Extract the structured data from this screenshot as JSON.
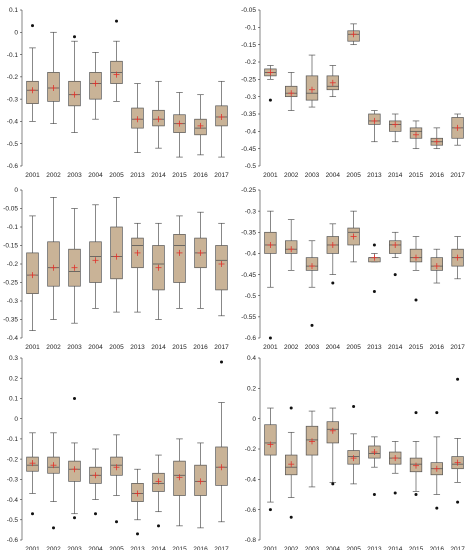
{
  "chart_data": [
    {
      "type": "box",
      "categories": [
        "2001",
        "2002",
        "2003",
        "2004",
        "2005",
        "2013",
        "2014",
        "2015",
        "2016",
        "2017"
      ],
      "ylim": [
        -0.6,
        0.1
      ],
      "yticks": [
        -0.6,
        -0.5,
        -0.4,
        -0.3,
        -0.2,
        -0.1,
        0,
        0.1
      ],
      "yticklabels": [
        "-0.6",
        "-0.5",
        "-0.4",
        "-0.3",
        "-0.2",
        "-0.1",
        "0",
        "0.1"
      ],
      "boxes": [
        {
          "whislo": -0.4,
          "q1": -0.32,
          "med": -0.26,
          "q3": -0.22,
          "whishi": -0.07,
          "mean": -0.26,
          "fliers": [
            0.03
          ]
        },
        {
          "whislo": -0.41,
          "q1": -0.31,
          "med": -0.25,
          "q3": -0.18,
          "whishi": 0.0,
          "mean": -0.25,
          "fliers": []
        },
        {
          "whislo": -0.45,
          "q1": -0.33,
          "med": -0.28,
          "q3": -0.22,
          "whishi": -0.04,
          "mean": -0.28,
          "fliers": [
            -0.02
          ]
        },
        {
          "whislo": -0.39,
          "q1": -0.3,
          "med": -0.23,
          "q3": -0.18,
          "whishi": -0.09,
          "mean": -0.23,
          "fliers": []
        },
        {
          "whislo": -0.31,
          "q1": -0.23,
          "med": -0.18,
          "q3": -0.13,
          "whishi": -0.04,
          "mean": -0.19,
          "fliers": [
            0.05
          ]
        },
        {
          "whislo": -0.54,
          "q1": -0.43,
          "med": -0.39,
          "q3": -0.34,
          "whishi": -0.23,
          "mean": -0.39,
          "fliers": []
        },
        {
          "whislo": -0.52,
          "q1": -0.42,
          "med": -0.39,
          "q3": -0.35,
          "whishi": -0.22,
          "mean": -0.39,
          "fliers": []
        },
        {
          "whislo": -0.56,
          "q1": -0.45,
          "med": -0.41,
          "q3": -0.37,
          "whishi": -0.27,
          "mean": -0.41,
          "fliers": []
        },
        {
          "whislo": -0.55,
          "q1": -0.46,
          "med": -0.43,
          "q3": -0.39,
          "whishi": -0.28,
          "mean": -0.42,
          "fliers": []
        },
        {
          "whislo": -0.56,
          "q1": -0.42,
          "med": -0.38,
          "q3": -0.33,
          "whishi": -0.22,
          "mean": -0.38,
          "fliers": []
        }
      ]
    },
    {
      "type": "box",
      "categories": [
        "2001",
        "2002",
        "2003",
        "2004",
        "2005",
        "2013",
        "2014",
        "2015",
        "2016",
        "2017"
      ],
      "ylim": [
        -0.5,
        -0.05
      ],
      "yticks": [
        -0.5,
        -0.45,
        -0.4,
        -0.35,
        -0.3,
        -0.25,
        -0.2,
        -0.15,
        -0.1,
        -0.05
      ],
      "yticklabels": [
        "-0.5",
        "-0.45",
        "-0.4",
        "-0.35",
        "-0.3",
        "-0.25",
        "-0.2",
        "-0.15",
        "-0.1",
        "-0.05"
      ],
      "boxes": [
        {
          "whislo": -0.25,
          "q1": -0.24,
          "med": -0.23,
          "q3": -0.22,
          "whishi": -0.21,
          "mean": -0.23,
          "fliers": [
            -0.31
          ]
        },
        {
          "whislo": -0.34,
          "q1": -0.3,
          "med": -0.29,
          "q3": -0.27,
          "whishi": -0.23,
          "mean": -0.29,
          "fliers": []
        },
        {
          "whislo": -0.33,
          "q1": -0.31,
          "med": -0.29,
          "q3": -0.24,
          "whishi": -0.18,
          "mean": -0.28,
          "fliers": []
        },
        {
          "whislo": -0.3,
          "q1": -0.28,
          "med": -0.27,
          "q3": -0.24,
          "whishi": -0.21,
          "mean": -0.26,
          "fliers": []
        },
        {
          "whislo": -0.15,
          "q1": -0.14,
          "med": -0.12,
          "q3": -0.11,
          "whishi": -0.09,
          "mean": -0.12,
          "fliers": []
        },
        {
          "whislo": -0.43,
          "q1": -0.38,
          "med": -0.37,
          "q3": -0.35,
          "whishi": -0.34,
          "mean": -0.37,
          "fliers": []
        },
        {
          "whislo": -0.43,
          "q1": -0.4,
          "med": -0.38,
          "q3": -0.37,
          "whishi": -0.35,
          "mean": -0.38,
          "fliers": []
        },
        {
          "whislo": -0.45,
          "q1": -0.42,
          "med": -0.4,
          "q3": -0.39,
          "whishi": -0.37,
          "mean": -0.41,
          "fliers": []
        },
        {
          "whislo": -0.45,
          "q1": -0.44,
          "med": -0.43,
          "q3": -0.42,
          "whishi": -0.39,
          "mean": -0.43,
          "fliers": []
        },
        {
          "whislo": -0.44,
          "q1": -0.42,
          "med": -0.39,
          "q3": -0.36,
          "whishi": -0.35,
          "mean": -0.39,
          "fliers": []
        }
      ]
    },
    {
      "type": "box",
      "categories": [
        "2001",
        "2002",
        "2003",
        "2004",
        "2005",
        "2013",
        "2014",
        "2015",
        "2016",
        "2017"
      ],
      "ylim": [
        -0.4,
        0
      ],
      "yticks": [
        -0.4,
        -0.35,
        -0.3,
        -0.25,
        -0.2,
        -0.15,
        -0.1,
        -0.05,
        0
      ],
      "yticklabels": [
        "-0.4",
        "-0.35",
        "-0.3",
        "-0.25",
        "-0.2",
        "-0.15",
        "-0.1",
        "-0.05",
        "0"
      ],
      "boxes": [
        {
          "whislo": -0.38,
          "q1": -0.28,
          "med": -0.23,
          "q3": -0.17,
          "whishi": -0.07,
          "mean": -0.23,
          "fliers": []
        },
        {
          "whislo": -0.35,
          "q1": -0.26,
          "med": -0.21,
          "q3": -0.14,
          "whishi": -0.02,
          "mean": -0.21,
          "fliers": []
        },
        {
          "whislo": -0.36,
          "q1": -0.26,
          "med": -0.22,
          "q3": -0.16,
          "whishi": -0.05,
          "mean": -0.21,
          "fliers": []
        },
        {
          "whislo": -0.32,
          "q1": -0.25,
          "med": -0.18,
          "q3": -0.14,
          "whishi": -0.04,
          "mean": -0.19,
          "fliers": []
        },
        {
          "whislo": -0.33,
          "q1": -0.24,
          "med": -0.18,
          "q3": -0.1,
          "whishi": -0.02,
          "mean": -0.18,
          "fliers": []
        },
        {
          "whislo": -0.33,
          "q1": -0.21,
          "med": -0.15,
          "q3": -0.13,
          "whishi": -0.09,
          "mean": -0.17,
          "fliers": []
        },
        {
          "whislo": -0.35,
          "q1": -0.27,
          "med": -0.2,
          "q3": -0.15,
          "whishi": -0.09,
          "mean": -0.21,
          "fliers": []
        },
        {
          "whislo": -0.32,
          "q1": -0.25,
          "med": -0.15,
          "q3": -0.12,
          "whishi": -0.07,
          "mean": -0.17,
          "fliers": []
        },
        {
          "whislo": -0.32,
          "q1": -0.21,
          "med": -0.17,
          "q3": -0.13,
          "whishi": -0.06,
          "mean": -0.17,
          "fliers": []
        },
        {
          "whislo": -0.34,
          "q1": -0.27,
          "med": -0.19,
          "q3": -0.15,
          "whishi": -0.09,
          "mean": -0.2,
          "fliers": []
        }
      ]
    },
    {
      "type": "box",
      "categories": [
        "2001",
        "2002",
        "2003",
        "2004",
        "2005",
        "2013",
        "2014",
        "2015",
        "2016",
        "2017"
      ],
      "ylim": [
        -0.6,
        -0.25
      ],
      "yticks": [
        -0.6,
        -0.55,
        -0.5,
        -0.45,
        -0.4,
        -0.35,
        -0.3,
        -0.25
      ],
      "yticklabels": [
        "-0.6",
        "-0.55",
        "-0.5",
        "-0.45",
        "-0.4",
        "-0.35",
        "-0.3",
        "-0.25"
      ],
      "boxes": [
        {
          "whislo": -0.48,
          "q1": -0.4,
          "med": -0.38,
          "q3": -0.35,
          "whishi": -0.3,
          "mean": -0.38,
          "fliers": [
            -0.6
          ]
        },
        {
          "whislo": -0.44,
          "q1": -0.4,
          "med": -0.39,
          "q3": -0.37,
          "whishi": -0.32,
          "mean": -0.39,
          "fliers": []
        },
        {
          "whislo": -0.48,
          "q1": -0.44,
          "med": -0.43,
          "q3": -0.41,
          "whishi": -0.37,
          "mean": -0.43,
          "fliers": [
            -0.57
          ]
        },
        {
          "whislo": -0.45,
          "q1": -0.4,
          "med": -0.38,
          "q3": -0.36,
          "whishi": -0.33,
          "mean": -0.38,
          "fliers": [
            -0.47
          ]
        },
        {
          "whislo": -0.42,
          "q1": -0.38,
          "med": -0.35,
          "q3": -0.34,
          "whishi": -0.3,
          "mean": -0.36,
          "fliers": []
        },
        {
          "whislo": -0.42,
          "q1": -0.42,
          "med": -0.41,
          "q3": -0.41,
          "whishi": -0.4,
          "mean": -0.41,
          "fliers": [
            -0.38,
            -0.49
          ]
        },
        {
          "whislo": -0.41,
          "q1": -0.4,
          "med": -0.38,
          "q3": -0.37,
          "whishi": -0.35,
          "mean": -0.38,
          "fliers": [
            -0.45
          ]
        },
        {
          "whislo": -0.44,
          "q1": -0.42,
          "med": -0.41,
          "q3": -0.39,
          "whishi": -0.36,
          "mean": -0.41,
          "fliers": [
            -0.51
          ]
        },
        {
          "whislo": -0.47,
          "q1": -0.44,
          "med": -0.43,
          "q3": -0.41,
          "whishi": -0.39,
          "mean": -0.43,
          "fliers": []
        },
        {
          "whislo": -0.46,
          "q1": -0.43,
          "med": -0.41,
          "q3": -0.39,
          "whishi": -0.36,
          "mean": -0.41,
          "fliers": []
        }
      ]
    },
    {
      "type": "box",
      "categories": [
        "2001",
        "2002",
        "2003",
        "2004",
        "2005",
        "2013",
        "2014",
        "2015",
        "2016",
        "2017"
      ],
      "ylim": [
        -0.6,
        0.3
      ],
      "yticks": [
        -0.6,
        -0.5,
        -0.4,
        -0.3,
        -0.2,
        -0.1,
        0,
        0.1,
        0.2,
        0.3
      ],
      "yticklabels": [
        "-0.6",
        "-0.5",
        "-0.4",
        "-0.3",
        "-0.2",
        "-0.1",
        "0",
        "0.1",
        "0.2",
        "0.3"
      ],
      "boxes": [
        {
          "whislo": -0.37,
          "q1": -0.26,
          "med": -0.23,
          "q3": -0.19,
          "whishi": -0.07,
          "mean": -0.22,
          "fliers": [
            -0.47
          ]
        },
        {
          "whislo": -0.41,
          "q1": -0.27,
          "med": -0.24,
          "q3": -0.19,
          "whishi": -0.07,
          "mean": -0.23,
          "fliers": [
            -0.54
          ]
        },
        {
          "whislo": -0.47,
          "q1": -0.31,
          "med": -0.25,
          "q3": -0.21,
          "whishi": -0.12,
          "mean": -0.25,
          "fliers": [
            0.1,
            -0.49
          ]
        },
        {
          "whislo": -0.4,
          "q1": -0.32,
          "med": -0.28,
          "q3": -0.24,
          "whishi": -0.15,
          "mean": -0.28,
          "fliers": [
            -0.47
          ]
        },
        {
          "whislo": -0.38,
          "q1": -0.28,
          "med": -0.23,
          "q3": -0.19,
          "whishi": -0.08,
          "mean": -0.24,
          "fliers": [
            -0.51
          ]
        },
        {
          "whislo": -0.5,
          "q1": -0.41,
          "med": -0.37,
          "q3": -0.32,
          "whishi": -0.25,
          "mean": -0.37,
          "fliers": [
            -0.57
          ]
        },
        {
          "whislo": -0.46,
          "q1": -0.36,
          "med": -0.32,
          "q3": -0.27,
          "whishi": -0.18,
          "mean": -0.31,
          "fliers": [
            -0.53
          ]
        },
        {
          "whislo": -0.53,
          "q1": -0.38,
          "med": -0.28,
          "q3": -0.21,
          "whishi": -0.1,
          "mean": -0.29,
          "fliers": []
        },
        {
          "whislo": -0.54,
          "q1": -0.38,
          "med": -0.31,
          "q3": -0.23,
          "whishi": -0.12,
          "mean": -0.31,
          "fliers": []
        },
        {
          "whislo": -0.51,
          "q1": -0.33,
          "med": -0.24,
          "q3": -0.14,
          "whishi": 0.08,
          "mean": -0.24,
          "fliers": [
            0.28
          ]
        }
      ]
    },
    {
      "type": "box",
      "categories": [
        "2001",
        "2002",
        "2003",
        "2004",
        "2005",
        "2013",
        "2014",
        "2015",
        "2016",
        "2017"
      ],
      "ylim": [
        -0.8,
        0.4
      ],
      "yticks": [
        -0.8,
        -0.6,
        -0.4,
        -0.2,
        0,
        0.2,
        0.4
      ],
      "yticklabels": [
        "-0.8",
        "-0.6",
        "-0.4",
        "-0.2",
        "0",
        "0.2",
        "0.4"
      ],
      "boxes": [
        {
          "whislo": -0.55,
          "q1": -0.24,
          "med": -0.16,
          "q3": -0.04,
          "whishi": 0.07,
          "mean": -0.17,
          "fliers": [
            -0.6
          ]
        },
        {
          "whislo": -0.52,
          "q1": -0.37,
          "med": -0.32,
          "q3": -0.24,
          "whishi": -0.09,
          "mean": -0.3,
          "fliers": [
            0.07,
            -0.65
          ]
        },
        {
          "whislo": -0.45,
          "q1": -0.24,
          "med": -0.14,
          "q3": -0.05,
          "whishi": 0.05,
          "mean": -0.15,
          "fliers": []
        },
        {
          "whislo": -0.42,
          "q1": -0.16,
          "med": -0.07,
          "q3": -0.02,
          "whishi": 0.07,
          "mean": -0.08,
          "fliers": [
            -0.43
          ]
        },
        {
          "whislo": -0.43,
          "q1": -0.3,
          "med": -0.25,
          "q3": -0.21,
          "whishi": -0.1,
          "mean": -0.26,
          "fliers": [
            0.08
          ]
        },
        {
          "whislo": -0.32,
          "q1": -0.26,
          "med": -0.23,
          "q3": -0.18,
          "whishi": -0.12,
          "mean": -0.22,
          "fliers": [
            -0.5
          ]
        },
        {
          "whislo": -0.36,
          "q1": -0.3,
          "med": -0.26,
          "q3": -0.22,
          "whishi": -0.15,
          "mean": -0.26,
          "fliers": [
            -0.49
          ]
        },
        {
          "whislo": -0.48,
          "q1": -0.35,
          "med": -0.3,
          "q3": -0.26,
          "whishi": -0.15,
          "mean": -0.31,
          "fliers": [
            0.04,
            -0.5
          ]
        },
        {
          "whislo": -0.5,
          "q1": -0.37,
          "med": -0.33,
          "q3": -0.29,
          "whishi": -0.12,
          "mean": -0.33,
          "fliers": [
            0.04,
            -0.59
          ]
        },
        {
          "whislo": -0.42,
          "q1": -0.33,
          "med": -0.3,
          "q3": -0.25,
          "whishi": -0.13,
          "mean": -0.29,
          "fliers": [
            0.26,
            -0.55
          ]
        }
      ]
    }
  ]
}
